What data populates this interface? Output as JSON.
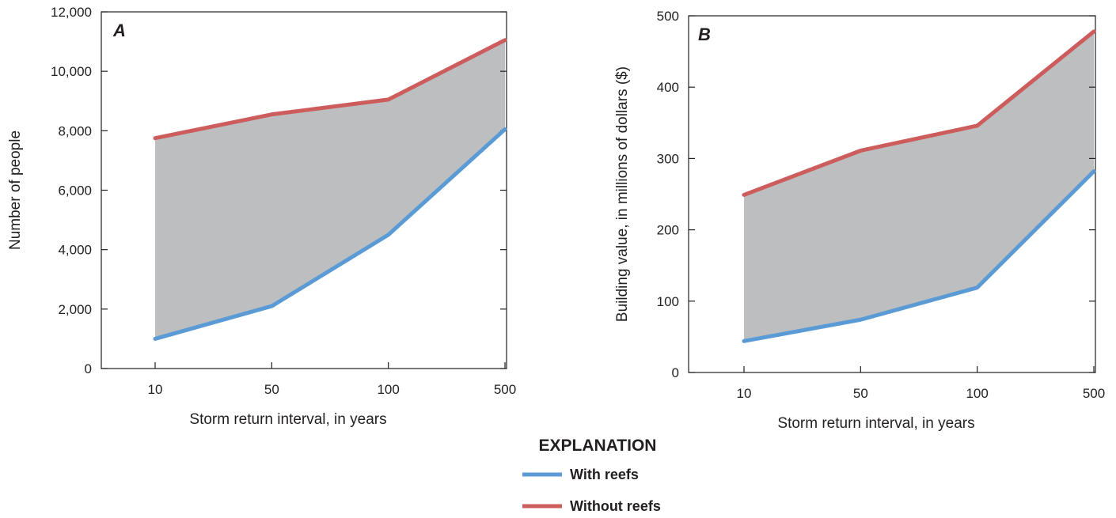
{
  "chart_data": [
    {
      "type": "area",
      "panel_label": "A",
      "xlabel": "Storm return interval, in years",
      "ylabel": "Number of people",
      "categories": [
        "10",
        "50",
        "100",
        "500"
      ],
      "ylim": [
        0,
        12000
      ],
      "yticks": [
        0,
        2000,
        4000,
        6000,
        8000,
        10000,
        12000
      ],
      "ytick_labels": [
        "0",
        "2,000",
        "4,000",
        "6,000",
        "8,000",
        "10,000",
        "12,000"
      ],
      "grid": false,
      "shade_between_series": true,
      "series": [
        {
          "name": "With reefs",
          "values": [
            1000,
            2100,
            4500,
            8050
          ]
        },
        {
          "name": "Without reefs",
          "values": [
            7750,
            8550,
            9050,
            11050
          ]
        }
      ]
    },
    {
      "type": "area",
      "panel_label": "B",
      "xlabel": "Storm return interval, in years",
      "ylabel": "Building value, in millions of dollars ($)",
      "categories": [
        "10",
        "50",
        "100",
        "500"
      ],
      "ylim": [
        0,
        500
      ],
      "yticks": [
        0,
        100,
        200,
        300,
        400,
        500
      ],
      "ytick_labels": [
        "0",
        "100",
        "200",
        "300",
        "400",
        "500"
      ],
      "grid": false,
      "shade_between_series": true,
      "series": [
        {
          "name": "With reefs",
          "values": [
            44,
            74,
            119,
            282
          ]
        },
        {
          "name": "Without reefs",
          "values": [
            249,
            311,
            346,
            478
          ]
        }
      ]
    }
  ],
  "legend": {
    "title": "EXPLANATION",
    "placement": "bottom-center",
    "items": [
      {
        "label": "With reefs",
        "color": "#5b9bd5"
      },
      {
        "label": "Without reefs",
        "color": "#cd5c5c"
      }
    ]
  },
  "colors": {
    "with_reefs": "#5b9bd5",
    "without_reefs": "#cd5c5c",
    "band_fill": "#bcbec0",
    "axis": "#231f20"
  }
}
